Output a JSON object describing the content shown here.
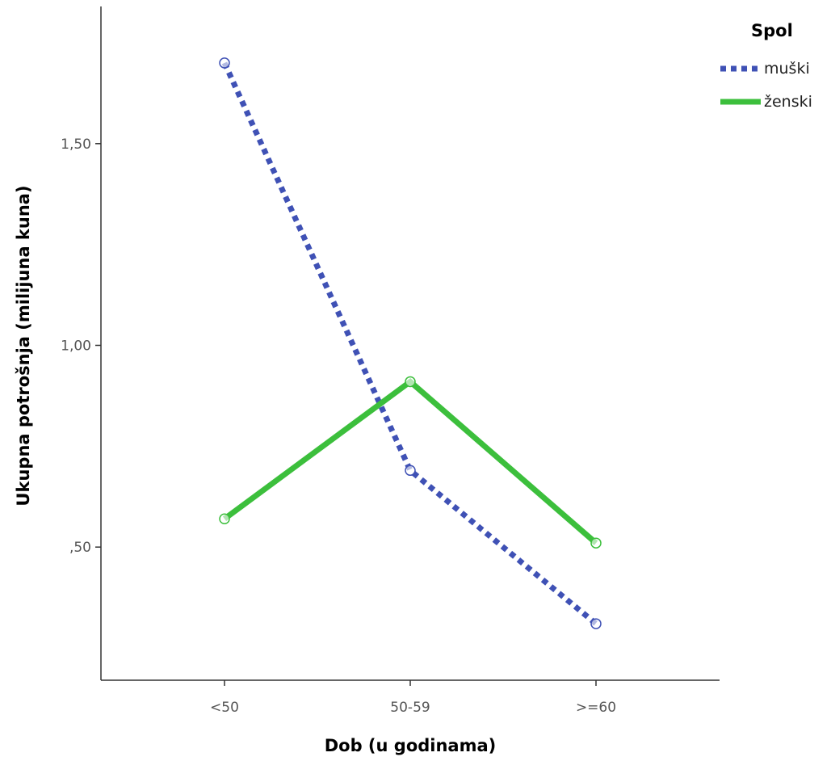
{
  "chart_data": {
    "type": "line",
    "title": "",
    "xlabel": "Dob (u godinama)",
    "ylabel": "Ukupna potrošnja (milijuna kuna)",
    "categories": [
      "<50",
      "50-59",
      ">=60"
    ],
    "ylim": [
      0.17,
      1.84
    ],
    "yticks": [
      0.5,
      1.0,
      1.5
    ],
    "ytick_labels": [
      ",50",
      "1,00",
      "1,50"
    ],
    "grid": false,
    "legend": {
      "title": "Spol",
      "placement": "top-right"
    },
    "series": [
      {
        "name": "muški",
        "values": [
          1.7,
          0.69,
          0.31
        ],
        "color": "#3f51b5",
        "style": "dotted"
      },
      {
        "name": "ženski",
        "values": [
          0.57,
          0.91,
          0.51
        ],
        "color": "#3cbf3c",
        "style": "solid"
      }
    ]
  }
}
